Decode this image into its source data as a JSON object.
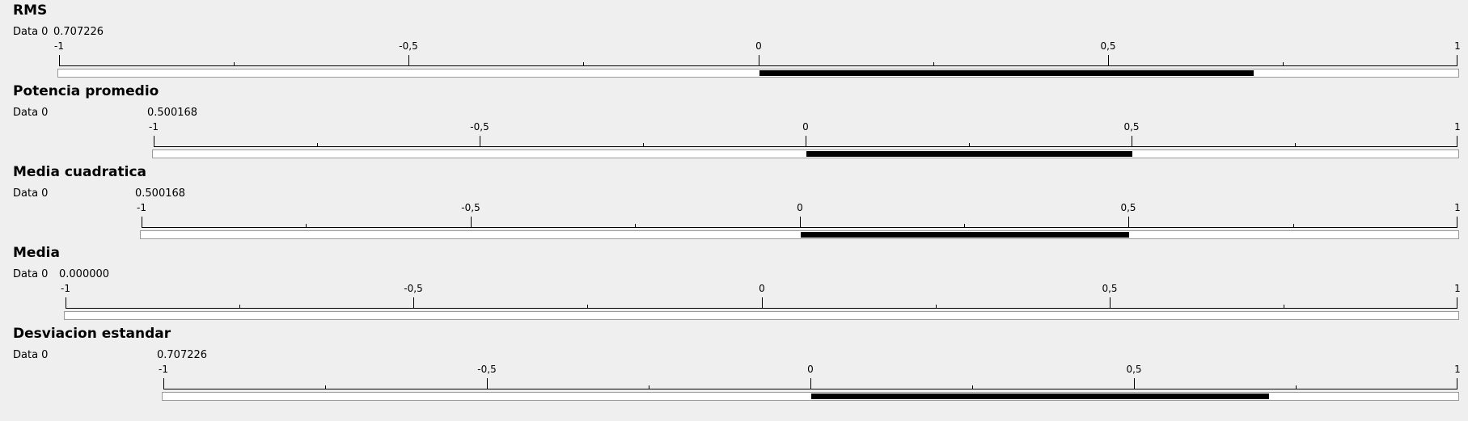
{
  "colors": {
    "background": "#efefef",
    "fill": "#000000",
    "track": "#ffffff",
    "track_border": "#9a9a9a"
  },
  "panels": [
    {
      "title": "RMS",
      "series_label": "Data 0",
      "value_text": "0.707226",
      "value": 0.707226,
      "ticks": [
        "-1",
        "-0,5",
        "0",
        "0,5",
        "1"
      ],
      "range": [
        -1,
        1
      ]
    },
    {
      "title": "Potencia promedio",
      "series_label": "Data 0",
      "value_text": "0.500168",
      "value": 0.500168,
      "ticks": [
        "-1",
        "-0,5",
        "0",
        "0,5",
        "1"
      ],
      "range": [
        -1,
        1
      ]
    },
    {
      "title": "Media cuadratica",
      "series_label": "Data 0",
      "value_text": "0.500168",
      "value": 0.500168,
      "ticks": [
        "-1",
        "-0,5",
        "0",
        "0,5",
        "1"
      ],
      "range": [
        -1,
        1
      ]
    },
    {
      "title": "Media",
      "series_label": "Data 0",
      "value_text": "0.000000",
      "value": 0.0,
      "ticks": [
        "-1",
        "-0,5",
        "0",
        "0,5",
        "1"
      ],
      "range": [
        -1,
        1
      ]
    },
    {
      "title": "Desviacion estandar",
      "series_label": "Data 0",
      "value_text": "0.707226",
      "value": 0.707226,
      "ticks": [
        "-1",
        "-0,5",
        "0",
        "0,5",
        "1"
      ],
      "range": [
        -1,
        1
      ]
    }
  ]
}
